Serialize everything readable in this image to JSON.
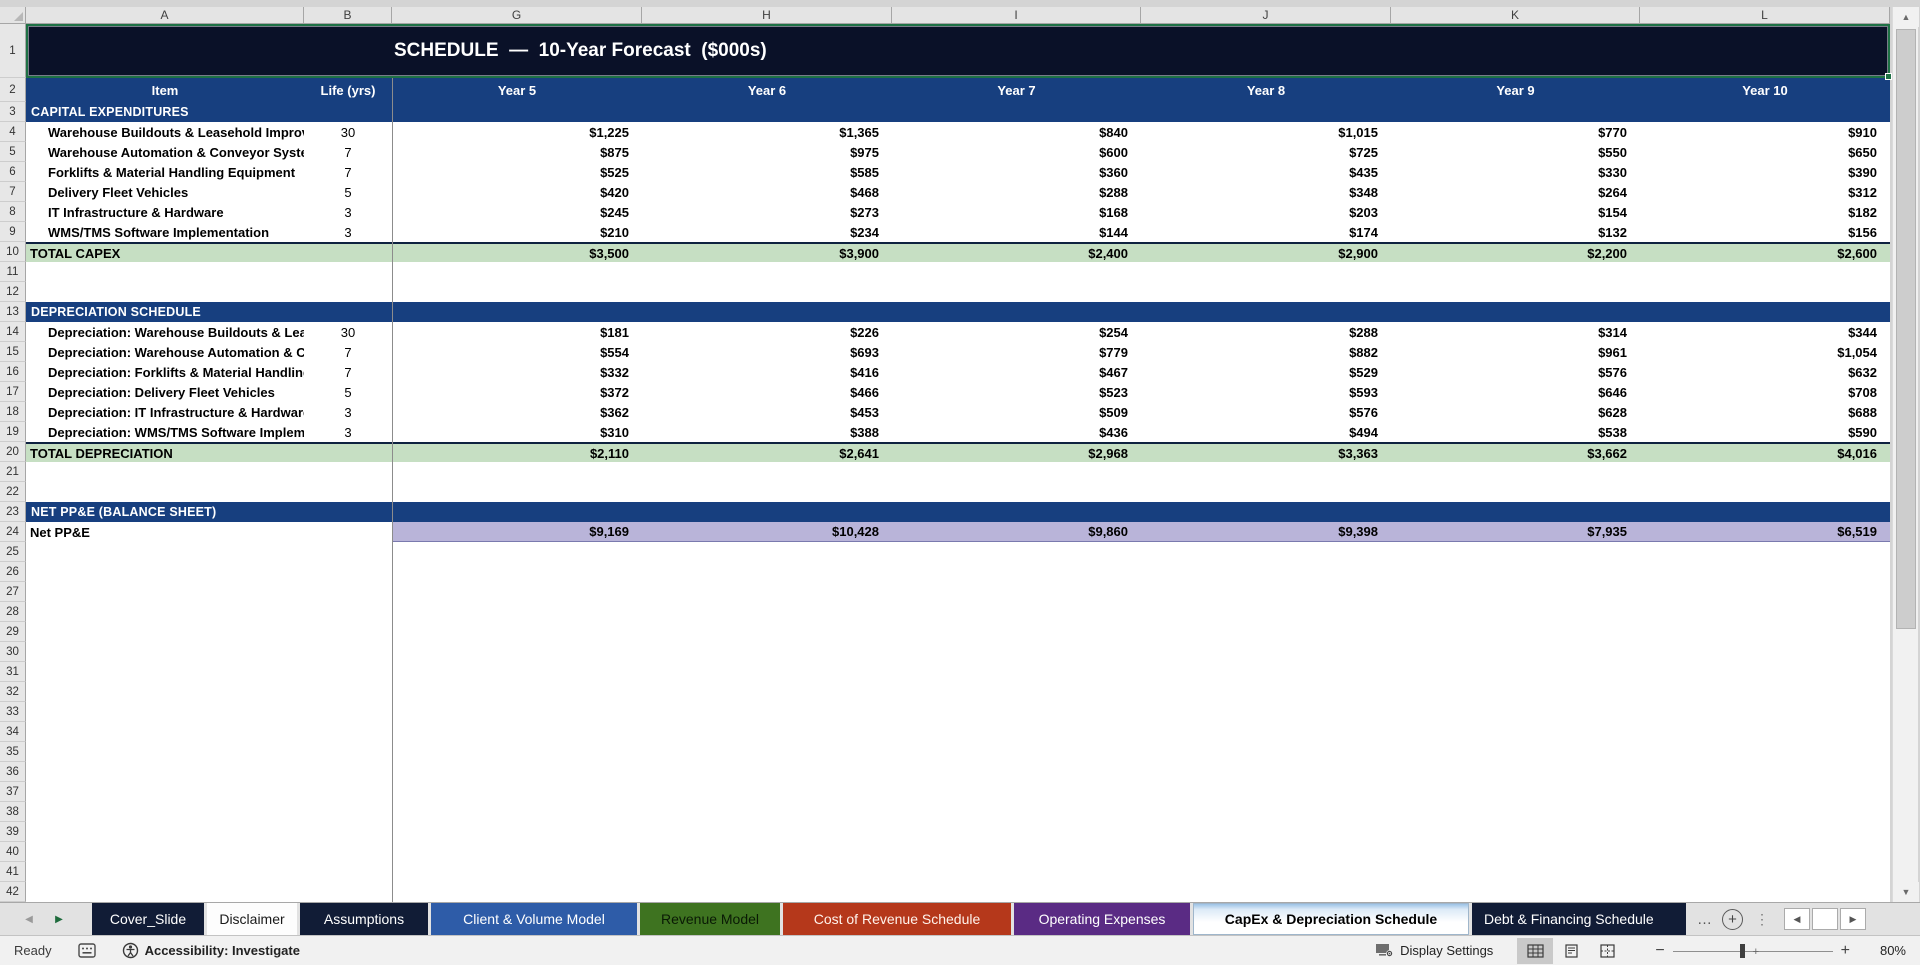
{
  "title": "SCHEDULE  —  10-Year Forecast  ($000s)",
  "colors": {
    "title_bg": "#0A1128",
    "header_blue": "#173F7F",
    "total_green": "#C6DFC3",
    "net_lavender": "#B9B4D9",
    "selection_green": "#1E7145"
  },
  "sheet": {
    "column_letters": [
      "A",
      "B",
      "G",
      "H",
      "I",
      "J",
      "K",
      "L"
    ],
    "row_count": 42,
    "header": {
      "item": "Item",
      "life": "Life (yrs)",
      "years": [
        "Year 5",
        "Year 6",
        "Year 7",
        "Year 8",
        "Year 9",
        "Year 10"
      ]
    },
    "rows": [
      {
        "n": 3,
        "type": "section",
        "label": "CAPITAL EXPENDITURES"
      },
      {
        "n": 4,
        "type": "item",
        "label": "Warehouse Buildouts & Leasehold Improv.",
        "life": "30",
        "values": [
          "$1,225",
          "$1,365",
          "$840",
          "$1,015",
          "$770",
          "$910"
        ]
      },
      {
        "n": 5,
        "type": "item",
        "label": "Warehouse Automation & Conveyor Systems",
        "life": "7",
        "values": [
          "$875",
          "$975",
          "$600",
          "$725",
          "$550",
          "$650"
        ]
      },
      {
        "n": 6,
        "type": "item",
        "label": "Forklifts & Material Handling Equipment",
        "life": "7",
        "values": [
          "$525",
          "$585",
          "$360",
          "$435",
          "$330",
          "$390"
        ]
      },
      {
        "n": 7,
        "type": "item",
        "label": "Delivery Fleet Vehicles",
        "life": "5",
        "values": [
          "$420",
          "$468",
          "$288",
          "$348",
          "$264",
          "$312"
        ]
      },
      {
        "n": 8,
        "type": "item",
        "label": "IT Infrastructure & Hardware",
        "life": "3",
        "values": [
          "$245",
          "$273",
          "$168",
          "$203",
          "$154",
          "$182"
        ]
      },
      {
        "n": 9,
        "type": "item",
        "label": "WMS/TMS Software Implementation",
        "life": "3",
        "values": [
          "$210",
          "$234",
          "$144",
          "$174",
          "$132",
          "$156"
        ]
      },
      {
        "n": 10,
        "type": "total",
        "label": "TOTAL CAPEX",
        "values": [
          "$3,500",
          "$3,900",
          "$2,400",
          "$2,900",
          "$2,200",
          "$2,600"
        ]
      },
      {
        "n": 11,
        "type": "blank"
      },
      {
        "n": 12,
        "type": "blank"
      },
      {
        "n": 13,
        "type": "section",
        "label": "DEPRECIATION SCHEDULE"
      },
      {
        "n": 14,
        "type": "item",
        "label": "Depreciation: Warehouse Buildouts & Leasehold Improv.",
        "life": "30",
        "values": [
          "$181",
          "$226",
          "$254",
          "$288",
          "$314",
          "$344"
        ]
      },
      {
        "n": 15,
        "type": "item",
        "label": "Depreciation: Warehouse Automation & Conveyor Systems",
        "life": "7",
        "values": [
          "$554",
          "$693",
          "$779",
          "$882",
          "$961",
          "$1,054"
        ]
      },
      {
        "n": 16,
        "type": "item",
        "label": "Depreciation: Forklifts & Material Handling Equipment",
        "life": "7",
        "values": [
          "$332",
          "$416",
          "$467",
          "$529",
          "$576",
          "$632"
        ]
      },
      {
        "n": 17,
        "type": "item",
        "label": "Depreciation: Delivery Fleet Vehicles",
        "life": "5",
        "values": [
          "$372",
          "$466",
          "$523",
          "$593",
          "$646",
          "$708"
        ]
      },
      {
        "n": 18,
        "type": "item",
        "label": "Depreciation: IT Infrastructure & Hardware",
        "life": "3",
        "values": [
          "$362",
          "$453",
          "$509",
          "$576",
          "$628",
          "$688"
        ]
      },
      {
        "n": 19,
        "type": "item",
        "label": "Depreciation: WMS/TMS Software Implementation",
        "life": "3",
        "values": [
          "$310",
          "$388",
          "$436",
          "$494",
          "$538",
          "$590"
        ]
      },
      {
        "n": 20,
        "type": "total",
        "label": "TOTAL DEPRECIATION",
        "values": [
          "$2,110",
          "$2,641",
          "$2,968",
          "$3,363",
          "$3,662",
          "$4,016"
        ]
      },
      {
        "n": 21,
        "type": "blank"
      },
      {
        "n": 22,
        "type": "blank"
      },
      {
        "n": 23,
        "type": "section",
        "label": "NET PP&E (BALANCE SHEET)"
      },
      {
        "n": 24,
        "type": "net",
        "label": "Net PP&E",
        "values": [
          "$9,169",
          "$10,428",
          "$9,860",
          "$9,398",
          "$7,935",
          "$6,519"
        ]
      }
    ]
  },
  "tabbar": {
    "more_label": "…",
    "tabs": [
      {
        "label": "Cover_Slide",
        "bg": "#111C36",
        "fg": "#FFFFFF"
      },
      {
        "label": "Disclaimer",
        "bg": "#FDFDFD",
        "fg": "#1A1A1A"
      },
      {
        "label": "Assumptions",
        "bg": "#111C36",
        "fg": "#FFFFFF"
      },
      {
        "label": "Client & Volume Model",
        "bg": "#2E5CA8",
        "fg": "#FFFFFF"
      },
      {
        "label": "Revenue Model",
        "bg": "#3E7320",
        "fg": "#0A1A05"
      },
      {
        "label": "Cost of Revenue Schedule",
        "bg": "#B5381B",
        "fg": "#FFF3EC"
      },
      {
        "label": "Operating Expenses",
        "bg": "#5A2B84",
        "fg": "#FFFFFF"
      },
      {
        "label": "CapEx & Depreciation Schedule",
        "active": true
      },
      {
        "label": "Debt & Financing Schedule",
        "bg": "#111C36",
        "fg": "#FFFFFF",
        "clipped": true
      }
    ]
  },
  "status": {
    "ready": "Ready",
    "accessibility": "Accessibility: Investigate",
    "display_settings": "Display Settings",
    "zoom_level": "80%"
  }
}
